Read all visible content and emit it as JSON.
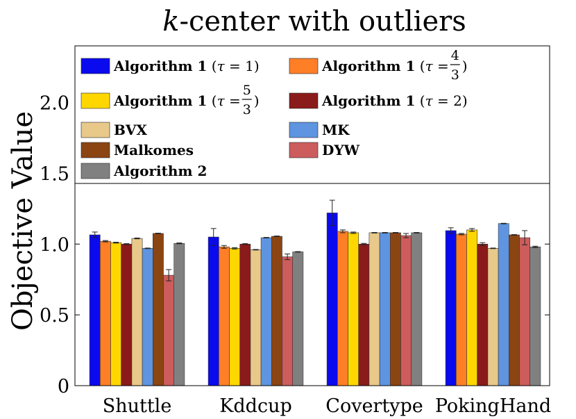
{
  "chart_data": {
    "type": "bar",
    "title": "k-center with outliers",
    "title_italic_part": "k",
    "title_rest": "-center with outliers",
    "ylabel": "Objective Value",
    "xlabel": "",
    "ylim": [
      0,
      2.4
    ],
    "yticks": [
      0,
      0.5,
      1.0,
      1.5,
      2.0
    ],
    "ytick_labels": [
      "0",
      "0.5",
      "1.0",
      "1.5",
      "2.0"
    ],
    "categories": [
      "Shuttle",
      "Kddcup",
      "Covertype",
      "PokingHand"
    ],
    "legend_position": "top",
    "series": [
      {
        "name": "Algorithm 1",
        "tau": "1",
        "color": "#0a0aef",
        "values": [
          1.065,
          1.05,
          1.22,
          1.095
        ],
        "errors": [
          0.02,
          0.06,
          0.09,
          0.02
        ]
      },
      {
        "name": "Algorithm 1",
        "tau_num": "4",
        "tau_den": "3",
        "color": "#ff7f27",
        "values": [
          1.02,
          0.98,
          1.09,
          1.07
        ],
        "errors": [
          0.005,
          0.01,
          0.01,
          0.005
        ]
      },
      {
        "name": "Algorithm 1",
        "tau_num": "5",
        "tau_den": "3",
        "color": "#ffd700",
        "values": [
          1.01,
          0.97,
          1.08,
          1.1
        ],
        "errors": [
          0.003,
          0.005,
          0.005,
          0.01
        ]
      },
      {
        "name": "Algorithm 1",
        "tau": "2",
        "color": "#8b1a1a",
        "values": [
          1.0,
          1.0,
          1.0,
          1.0
        ],
        "errors": [
          0.003,
          0.003,
          0.005,
          0.01
        ]
      },
      {
        "name": "BVX",
        "color": "#e8c98a",
        "values": [
          1.04,
          0.96,
          1.08,
          0.97
        ],
        "errors": [
          0.003,
          0.002,
          0.002,
          0.002
        ]
      },
      {
        "name": "MK",
        "color": "#5e94e0",
        "values": [
          0.97,
          1.045,
          1.08,
          1.145
        ],
        "errors": [
          0.002,
          0.002,
          0.002,
          0.002
        ]
      },
      {
        "name": "Malkomes",
        "color": "#8b4513",
        "values": [
          1.075,
          1.055,
          1.08,
          1.065
        ],
        "errors": [
          0.002,
          0.002,
          0.002,
          0.002
        ]
      },
      {
        "name": "DYW",
        "color": "#cd5c5c",
        "values": [
          0.78,
          0.91,
          1.06,
          1.045
        ],
        "errors": [
          0.04,
          0.02,
          0.015,
          0.05
        ]
      },
      {
        "name": "Algorithm 2",
        "color": "#808080",
        "values": [
          1.005,
          0.945,
          1.08,
          0.98
        ],
        "errors": [
          0.003,
          0.002,
          0.002,
          0.005
        ]
      }
    ],
    "legend": {
      "tau_symbol": "τ",
      "equals": " = ",
      "open_paren": "(",
      "close_paren": ")"
    }
  }
}
